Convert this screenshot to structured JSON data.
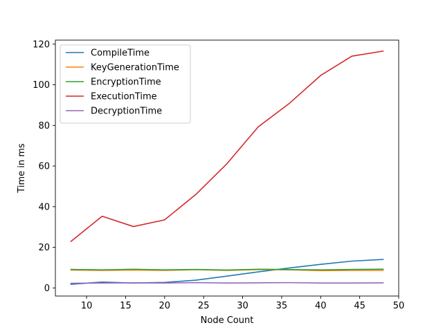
{
  "chart_data": {
    "type": "line",
    "title": "",
    "xlabel": "Node Count",
    "ylabel": "Time in ms",
    "xlim": [
      6,
      50
    ],
    "ylim": [
      -4,
      122
    ],
    "xticks": [
      10,
      15,
      20,
      25,
      30,
      35,
      40,
      45,
      50
    ],
    "yticks": [
      0,
      20,
      40,
      60,
      80,
      100,
      120
    ],
    "grid": false,
    "legend_position": "top-left",
    "x": [
      8,
      12,
      16,
      20,
      24,
      28,
      32,
      36,
      40,
      44,
      48
    ],
    "series": [
      {
        "name": "CompileTime",
        "color": "#1f77b4",
        "values": [
          1.8,
          2.9,
          2.4,
          2.7,
          3.8,
          5.8,
          7.9,
          9.8,
          11.6,
          13.2,
          14.0
        ]
      },
      {
        "name": "KeyGenerationTime",
        "color": "#ff7f0e",
        "values": [
          8.8,
          8.6,
          8.8,
          8.6,
          9.0,
          8.6,
          9.0,
          8.9,
          8.5,
          8.6,
          8.6
        ]
      },
      {
        "name": "EncryptionTime",
        "color": "#2ca02c",
        "values": [
          9.1,
          8.9,
          9.2,
          8.9,
          9.1,
          8.8,
          9.2,
          9.0,
          8.9,
          9.1,
          9.2
        ]
      },
      {
        "name": "ExecutionTime",
        "color": "#d62728",
        "values": [
          22.9,
          35.3,
          30.2,
          33.5,
          46.0,
          61.2,
          79.3,
          90.9,
          104.6,
          114.1,
          116.6
        ]
      },
      {
        "name": "DecryptionTime",
        "color": "#9467bd",
        "values": [
          2.3,
          2.4,
          2.5,
          2.4,
          2.6,
          2.4,
          2.5,
          2.6,
          2.4,
          2.4,
          2.5
        ]
      }
    ]
  }
}
